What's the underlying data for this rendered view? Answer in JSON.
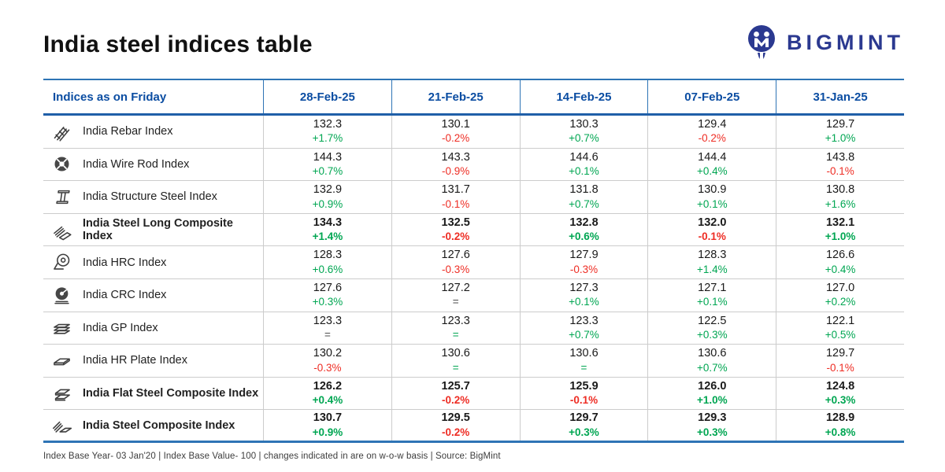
{
  "page": {
    "title": "India steel indices table",
    "brand": "BIGMINT",
    "footer": "Index Base Year- 03 Jan'20 | Index Base Value- 100 | changes indicated in are on w-o-w basis | Source: BigMint"
  },
  "colors": {
    "header_blue": "#0b4da2",
    "navy": "#2b3990",
    "up_green": "#00a652",
    "down_red": "#ee2d24",
    "flat_dark": "#4d4d4d",
    "border_blue": "#2e74b5",
    "border_blue_dark": "#1f5fa8",
    "border_light": "#cccccc"
  },
  "chart_data": {
    "type": "table",
    "title": "India steel indices table",
    "columns": [
      "Indices as on Friday",
      "28-Feb-25",
      "21-Feb-25",
      "14-Feb-25",
      "07-Feb-25",
      "31-Jan-25"
    ],
    "rows": [
      {
        "name": "India Rebar Index",
        "icon": "rebar-icon",
        "bold": false,
        "values": [
          "132.3",
          "130.1",
          "130.3",
          "129.4",
          "129.7"
        ],
        "changes": [
          "+1.7%",
          "-0.2%",
          "+0.7%",
          "-0.2%",
          "+1.0%"
        ],
        "change_dirs": [
          "up",
          "down",
          "up",
          "down",
          "up"
        ]
      },
      {
        "name": "India Wire Rod Index",
        "icon": "wire-rod-icon",
        "bold": false,
        "values": [
          "144.3",
          "143.3",
          "144.6",
          "144.4",
          "143.8"
        ],
        "changes": [
          "+0.7%",
          "-0.9%",
          "+0.1%",
          "+0.4%",
          "-0.1%"
        ],
        "change_dirs": [
          "up",
          "down",
          "up",
          "up",
          "down"
        ]
      },
      {
        "name": "India Structure Steel Index",
        "icon": "structure-steel-icon",
        "bold": false,
        "values": [
          "132.9",
          "131.7",
          "131.8",
          "130.9",
          "130.8"
        ],
        "changes": [
          "+0.9%",
          "-0.1%",
          "+0.7%",
          "+0.1%",
          "+1.6%"
        ],
        "change_dirs": [
          "up",
          "down",
          "up",
          "up",
          "up"
        ]
      },
      {
        "name": "India Steel Long Composite Index",
        "icon": "long-steel-stack-icon",
        "bold": true,
        "values": [
          "134.3",
          "132.5",
          "132.8",
          "132.0",
          "132.1"
        ],
        "changes": [
          "+1.4%",
          "-0.2%",
          "+0.6%",
          "-0.1%",
          "+1.0%"
        ],
        "change_dirs": [
          "up",
          "down",
          "up",
          "down",
          "up"
        ]
      },
      {
        "name": "India HRC Index",
        "icon": "hot-rolled-coil-icon",
        "bold": false,
        "values": [
          "128.3",
          "127.6",
          "127.9",
          "128.3",
          "126.6"
        ],
        "changes": [
          "+0.6%",
          "-0.3%",
          "-0.3%",
          "+1.4%",
          "+0.4%"
        ],
        "change_dirs": [
          "up",
          "down",
          "down",
          "up",
          "up"
        ]
      },
      {
        "name": "India CRC Index",
        "icon": "cold-rolled-coil-icon",
        "bold": false,
        "values": [
          "127.6",
          "127.2",
          "127.3",
          "127.1",
          "127.0"
        ],
        "changes": [
          "+0.3%",
          "=",
          "+0.1%",
          "+0.1%",
          "+0.2%"
        ],
        "change_dirs": [
          "up",
          "flat-dark",
          "up",
          "up",
          "up"
        ]
      },
      {
        "name": "India GP Index",
        "icon": "sheet-stack-icon",
        "bold": false,
        "values": [
          "123.3",
          "123.3",
          "123.3",
          "122.5",
          "122.1"
        ],
        "changes": [
          "=",
          "=",
          "+0.7%",
          "+0.3%",
          "+0.5%"
        ],
        "change_dirs": [
          "flat-dark",
          "flat",
          "up",
          "up",
          "up"
        ]
      },
      {
        "name": "India HR Plate Index",
        "icon": "steel-plate-icon",
        "bold": false,
        "values": [
          "130.2",
          "130.6",
          "130.6",
          "130.6",
          "129.7"
        ],
        "changes": [
          "-0.3%",
          "=",
          "=",
          "+0.7%",
          "-0.1%"
        ],
        "change_dirs": [
          "down",
          "flat",
          "flat",
          "up",
          "down"
        ]
      },
      {
        "name": "India Flat Steel Composite Index",
        "icon": "flat-steel-stack-icon",
        "bold": true,
        "values": [
          "126.2",
          "125.7",
          "125.9",
          "126.0",
          "124.8"
        ],
        "changes": [
          "+0.4%",
          "-0.2%",
          "-0.1%",
          "+1.0%",
          "+0.3%"
        ],
        "change_dirs": [
          "up",
          "down",
          "down",
          "up",
          "up"
        ]
      },
      {
        "name": "India Steel Composite Index",
        "icon": "rebar-plate-icon",
        "bold": true,
        "values": [
          "130.7",
          "129.5",
          "129.7",
          "129.3",
          "128.9"
        ],
        "changes": [
          "+0.9%",
          "-0.2%",
          "+0.3%",
          "+0.3%",
          "+0.8%"
        ],
        "change_dirs": [
          "up",
          "down",
          "up",
          "up",
          "up"
        ]
      }
    ],
    "source": "BigMint"
  }
}
